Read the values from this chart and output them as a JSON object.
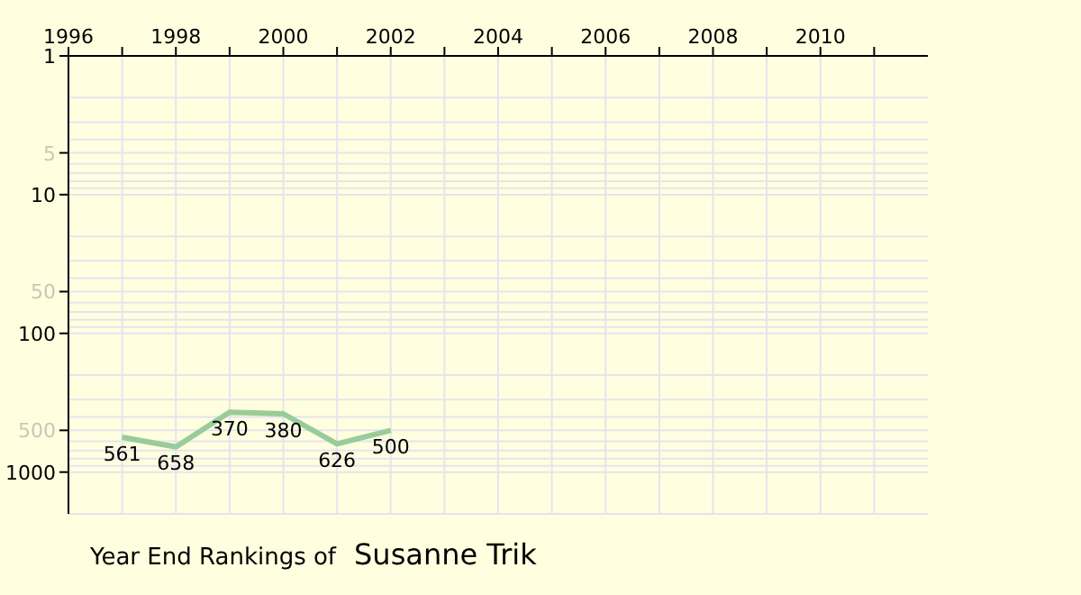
{
  "chart_data": {
    "type": "line",
    "title": "Year End Rankings of",
    "subtitle": "Susanne Trik",
    "x": [
      1997,
      1998,
      1999,
      2000,
      2001,
      2002
    ],
    "series": [
      {
        "color": "#99cc99",
        "values": [
          561,
          658,
          370,
          380,
          626,
          500
        ]
      }
    ],
    "data_labels": true,
    "log": "y",
    "grid": true,
    "marker": "none",
    "line_style": "solid",
    "xlim": [
      1996,
      2012
    ],
    "xticks": [
      1996,
      {
        "value": 1997,
        "label": null
      },
      1998,
      {
        "value": 1999,
        "label": null
      },
      2000,
      {
        "value": 2001,
        "label": null
      },
      2002,
      {
        "value": 2003,
        "label": null
      },
      2004,
      {
        "value": 2005,
        "label": null
      },
      2006,
      {
        "value": 2007,
        "label": null
      },
      2008,
      {
        "value": 2009,
        "label": null
      },
      2010,
      {
        "value": 2011,
        "label": null
      }
    ],
    "ylim": [
      2000,
      1
    ],
    "yticks": [
      1,
      5,
      10,
      50,
      100,
      500,
      1000
    ]
  }
}
